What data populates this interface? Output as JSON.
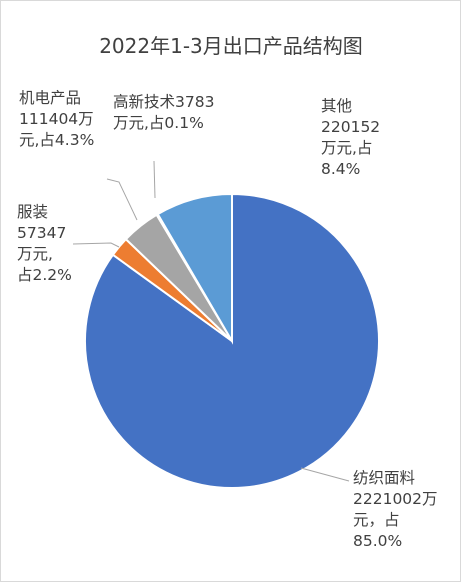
{
  "chart_data": {
    "type": "pie",
    "title": "2022年1-3月出口产品结构图",
    "unit": "万元",
    "slices": [
      {
        "name": "纺织面料",
        "value": 2221002,
        "percent": 85.0,
        "color": "#4472c4",
        "label_lines": [
          "纺织面料",
          "2221002万",
          "元，占",
          "85.0%"
        ]
      },
      {
        "name": "服装",
        "value": 57347,
        "percent": 2.2,
        "color": "#ed7d31",
        "label_lines": [
          "服装",
          "57347",
          "万元,",
          "占2.2%"
        ]
      },
      {
        "name": "机电产品",
        "value": 111404,
        "percent": 4.3,
        "color": "#a5a5a5",
        "label_lines": [
          "机电产品",
          "111404万",
          "元,占4.3%"
        ]
      },
      {
        "name": "高新技术",
        "value": 3783,
        "percent": 0.1,
        "color": "#ffc000",
        "label_lines": [
          "高新技术3783",
          "万元,占0.1%"
        ]
      },
      {
        "name": "其他",
        "value": 220152,
        "percent": 8.4,
        "color": "#5b9bd5",
        "label_lines": [
          "其他",
          "220152",
          "万元,占",
          "8.4%"
        ]
      }
    ]
  }
}
